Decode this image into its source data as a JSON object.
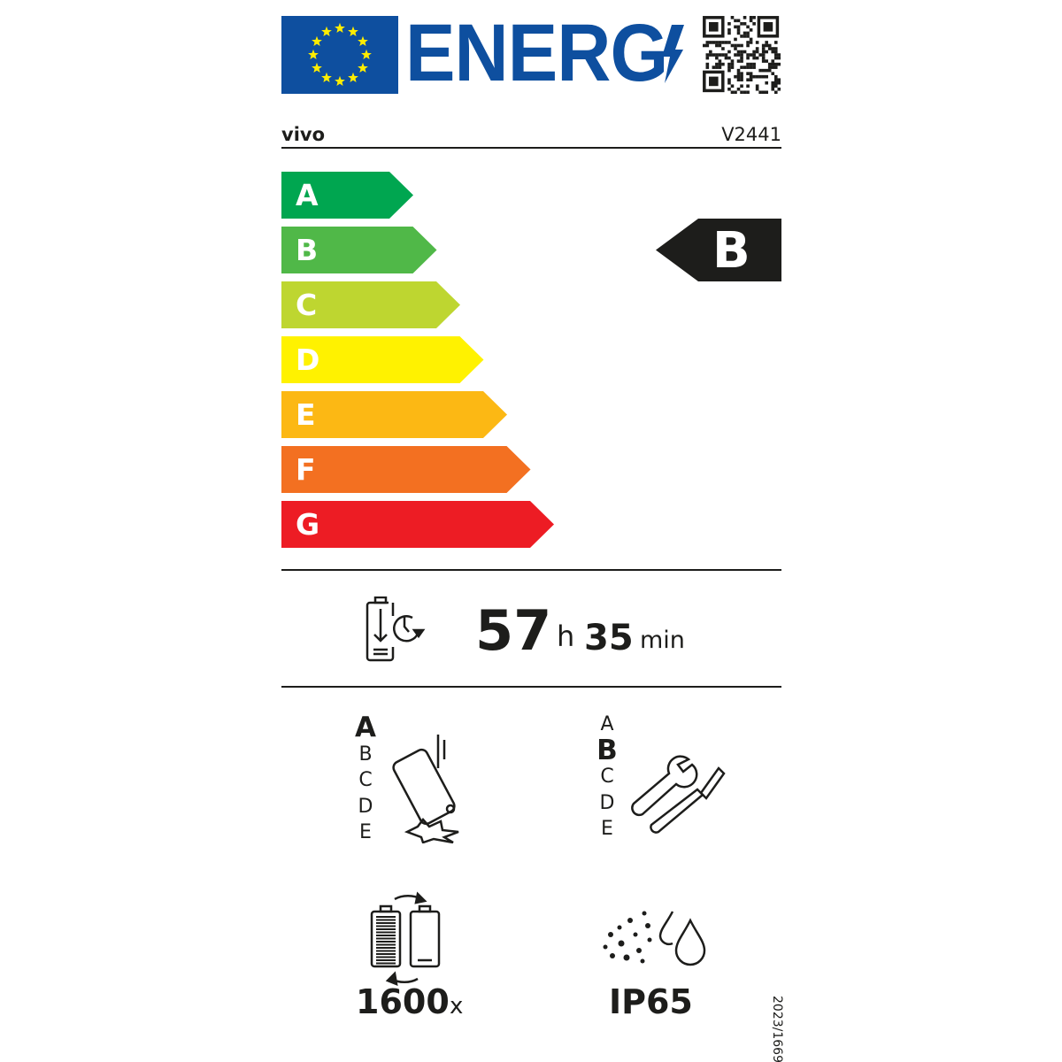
{
  "header": {
    "title": "ENERG",
    "brand": "vivo",
    "model": "V2441"
  },
  "icons": {
    "flag": "eu-flag-icon",
    "bolt": "lightning-bolt-icon",
    "qr": "qr-code-icon"
  },
  "energy_classes": [
    {
      "label": "A",
      "color": "#00a650"
    },
    {
      "label": "B",
      "color": "#50b848"
    },
    {
      "label": "C",
      "color": "#bed630"
    },
    {
      "label": "D",
      "color": "#fff200"
    },
    {
      "label": "E",
      "color": "#fcb814"
    },
    {
      "label": "F",
      "color": "#f37021"
    },
    {
      "label": "G",
      "color": "#ed1c24"
    }
  ],
  "rating": {
    "label": "B",
    "color": "#1d1d1b"
  },
  "battery_endurance": {
    "hours": "57",
    "hours_unit": "h",
    "minutes": "35",
    "minutes_unit": "min"
  },
  "drop_class": {
    "scale": [
      "A",
      "B",
      "C",
      "D",
      "E"
    ],
    "selected": "A"
  },
  "repairability_class": {
    "scale": [
      "A",
      "B",
      "C",
      "D",
      "E"
    ],
    "selected": "B"
  },
  "battery_cycles": {
    "value": "1600",
    "unit": "x"
  },
  "ingress_protection": {
    "value": "IP65"
  },
  "regulation": "2023/1669"
}
